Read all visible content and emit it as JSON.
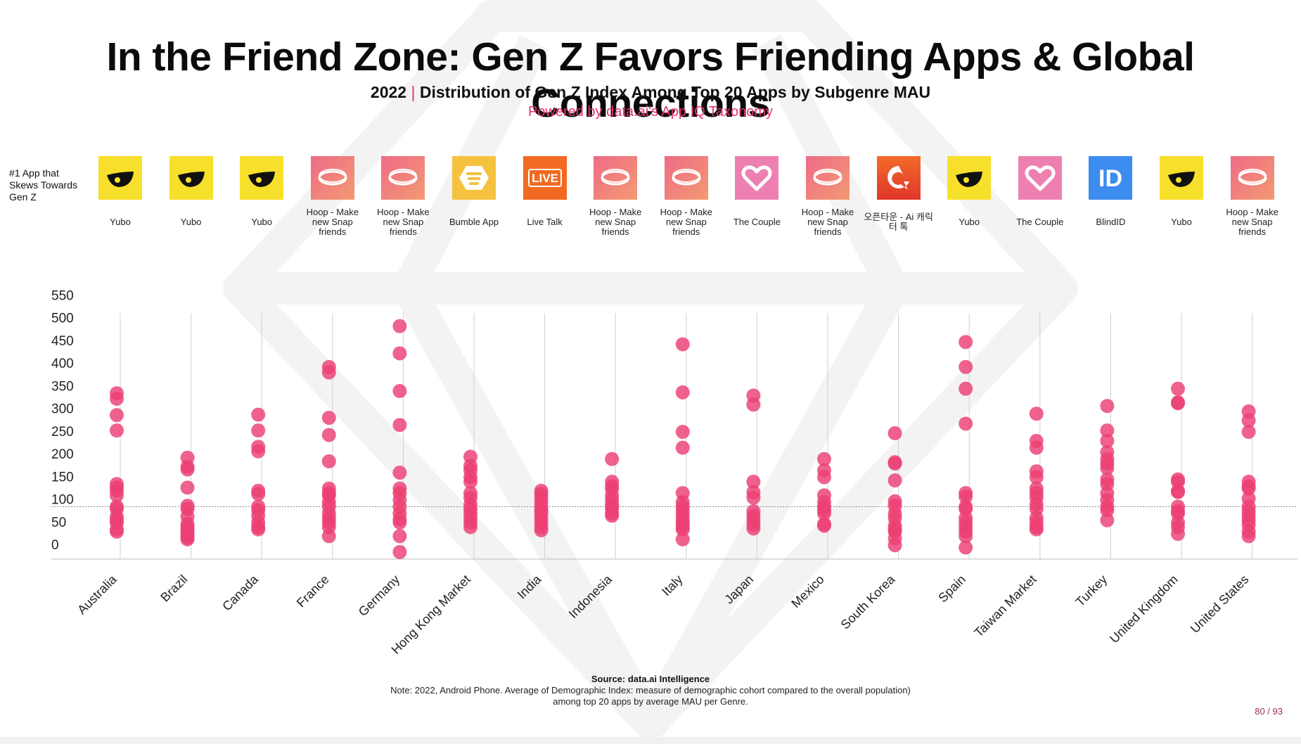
{
  "title": "In the Friend Zone: Gen Z Favors Friending Apps & Global Connections",
  "subtitle": {
    "year": "2022",
    "separator": "|",
    "text": "Distribution of Gen Z Index Among Top 20 Apps by Subgenre MAU"
  },
  "powered_by": "Powered by data.ai's App IQ Taxonomy",
  "row_label": "#1 App that Skews Towards Gen Z",
  "top_apps": [
    {
      "country": "Australia",
      "app": "Yubo",
      "icon": "yubo-icon"
    },
    {
      "country": "Brazil",
      "app": "Yubo",
      "icon": "yubo-icon"
    },
    {
      "country": "Canada",
      "app": "Yubo",
      "icon": "yubo-icon"
    },
    {
      "country": "France",
      "app": "Hoop - Make new Snap friends",
      "icon": "hoop-icon"
    },
    {
      "country": "Germany",
      "app": "Hoop - Make new Snap friends",
      "icon": "hoop-icon"
    },
    {
      "country": "Hong Kong Market",
      "app": "Bumble App",
      "icon": "bumble-icon"
    },
    {
      "country": "India",
      "app": "Live Talk",
      "icon": "livetalk-icon",
      "icon_text": "LIVE"
    },
    {
      "country": "Indonesia",
      "app": "Hoop - Make new Snap friends",
      "icon": "hoop-icon"
    },
    {
      "country": "Italy",
      "app": "Hoop - Make new Snap friends",
      "icon": "hoop-icon"
    },
    {
      "country": "Japan",
      "app": "The Couple",
      "icon": "couple-icon"
    },
    {
      "country": "Mexico",
      "app": "Hoop - Make new Snap friends",
      "icon": "hoop-icon"
    },
    {
      "country": "South Korea",
      "app": "오픈타운 - Ai 캐릭터 톡",
      "icon": "opentown-icon"
    },
    {
      "country": "Spain",
      "app": "Yubo",
      "icon": "yubo-icon"
    },
    {
      "country": "Taiwan Market",
      "app": "The Couple",
      "icon": "couple-icon"
    },
    {
      "country": "Turkey",
      "app": "BlindID",
      "icon": "blindid-icon",
      "icon_text": "ID"
    },
    {
      "country": "United Kingdom",
      "app": "Yubo",
      "icon": "yubo-icon"
    },
    {
      "country": "United States",
      "app": "Hoop - Make new Snap friends",
      "icon": "hoop-icon"
    }
  ],
  "colors": {
    "accent": "#e8336b",
    "dot": "#ec3f74",
    "yubo": "#f7e02b",
    "hoop_start": "#ee6b86",
    "hoop_end": "#f39a73",
    "bumble": "#f5c240",
    "livetalk": "#f26a21",
    "couple": "#ee80b1",
    "opentown": "#e0362b",
    "blindid": "#3d8cf0"
  },
  "chart_data": {
    "type": "scatter",
    "title": "Distribution of Gen Z Index Among Top 20 Apps by Subgenre MAU",
    "xlabel": "",
    "ylabel": "",
    "ylim": [
      0,
      550
    ],
    "yticks": [
      0,
      50,
      100,
      150,
      200,
      250,
      300,
      350,
      400,
      450,
      500,
      550
    ],
    "reference_line": 100,
    "categories": [
      "Australia",
      "Brazil",
      "Canada",
      "France",
      "Germany",
      "Hong Kong Market",
      "India",
      "Indonesia",
      "Italy",
      "Japan",
      "Mexico",
      "South Korea",
      "Spain",
      "Taiwan Market",
      "Turkey",
      "United Kingdom",
      "United States"
    ],
    "series": [
      {
        "name": "Australia",
        "values": [
          350,
          338,
          302,
          268,
          150,
          142,
          135,
          125,
          100,
          95,
          78,
          70,
          65,
          50,
          45
        ]
      },
      {
        "name": "Brazil",
        "values": [
          208,
          188,
          182,
          142,
          102,
          95,
          78,
          62,
          55,
          50,
          45,
          38,
          32,
          28
        ]
      },
      {
        "name": "Canada",
        "values": [
          303,
          268,
          232,
          222,
          135,
          128,
          100,
          92,
          80,
          65,
          55,
          50
        ]
      },
      {
        "name": "France",
        "values": [
          408,
          396,
          296,
          258,
          200,
          140,
          130,
          125,
          110,
          100,
          85,
          75,
          65,
          55,
          35
        ]
      },
      {
        "name": "Germany",
        "values": [
          498,
          438,
          355,
          280,
          175,
          140,
          130,
          115,
          100,
          85,
          72,
          65,
          35,
          0
        ]
      },
      {
        "name": "Hong Kong Market",
        "values": [
          210,
          190,
          180,
          165,
          155,
          130,
          120,
          105,
          95,
          85,
          75,
          65,
          55
        ]
      },
      {
        "name": "India",
        "values": [
          135,
          128,
          120,
          110,
          100,
          92,
          85,
          75,
          65,
          55,
          48
        ]
      },
      {
        "name": "Indonesia",
        "values": [
          205,
          155,
          145,
          140,
          125,
          115,
          105,
          100,
          95,
          85,
          80
        ]
      },
      {
        "name": "Italy",
        "values": [
          458,
          352,
          265,
          230,
          130,
          110,
          100,
          90,
          80,
          70,
          62,
          55,
          50,
          28
        ]
      },
      {
        "name": "Japan",
        "values": [
          345,
          325,
          155,
          132,
          120,
          90,
          80,
          70,
          60,
          52
        ]
      },
      {
        "name": "Mexico",
        "values": [
          205,
          180,
          165,
          125,
          110,
          100,
          92,
          85,
          62,
          58
        ]
      },
      {
        "name": "South Korea",
        "values": [
          262,
          198,
          195,
          158,
          112,
          102,
          85,
          75,
          58,
          50,
          45,
          30,
          15
        ]
      },
      {
        "name": "Spain",
        "values": [
          463,
          408,
          360,
          283,
          130,
          122,
          100,
          95,
          75,
          65,
          55,
          45,
          35,
          10
        ]
      },
      {
        "name": "Taiwan Market",
        "values": [
          305,
          245,
          230,
          178,
          165,
          140,
          130,
          120,
          105,
          95,
          75,
          65,
          55,
          50
        ]
      },
      {
        "name": "Turkey",
        "values": [
          322,
          268,
          245,
          220,
          205,
          195,
          185,
          160,
          150,
          130,
          115,
          100,
          92,
          70
        ]
      },
      {
        "name": "United Kingdom",
        "values": [
          360,
          330,
          328,
          160,
          155,
          135,
          132,
          100,
          90,
          85,
          65,
          55,
          40
        ]
      },
      {
        "name": "United States",
        "values": [
          310,
          290,
          265,
          155,
          145,
          140,
          118,
          100,
          90,
          80,
          70,
          60,
          45,
          35
        ]
      }
    ]
  },
  "source": "Source: data.ai Intelligence",
  "note_line1": "Note: 2022, Android Phone. Average of Demographic  Index: measure of demographic cohort compared to the overall population)",
  "note_line2": "among top 20 apps by average MAU per Genre.",
  "page_number": "80 / 93"
}
